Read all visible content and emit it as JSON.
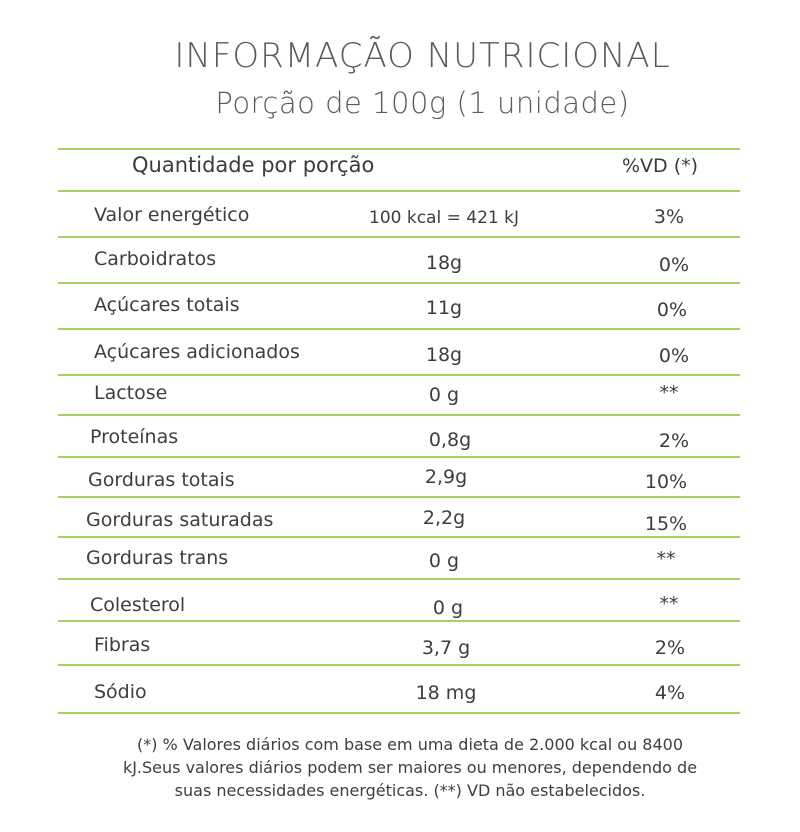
{
  "title": "INFORMAÇÃO NUTRICIONAL",
  "subtitle": "Porção de 100g (1 unidade)",
  "header": {
    "label": "Quantidade por porção",
    "vd_label": "%VD (*)"
  },
  "rows": [
    {
      "name": "Valor energético",
      "value": "100 kcal = 421 kJ",
      "vd": "3%"
    },
    {
      "name": "Carboidratos",
      "value": "18g",
      "vd": "0%"
    },
    {
      "name": "Açúcares totais",
      "value": "11g",
      "vd": "0%"
    },
    {
      "name": "Açúcares adicionados",
      "value": "18g",
      "vd": "0%"
    },
    {
      "name": "Lactose",
      "value": "0 g",
      "vd": "**"
    },
    {
      "name": "Proteínas",
      "value": "0,8g",
      "vd": "2%"
    },
    {
      "name": "Gorduras totais",
      "value": "2,9g",
      "vd": "10%"
    },
    {
      "name": "Gorduras saturadas",
      "value": "2,2g",
      "vd": "15%"
    },
    {
      "name": "Gorduras trans",
      "value": "0 g",
      "vd": "**"
    },
    {
      "name": "Colesterol",
      "value": "0 g",
      "vd": "**"
    },
    {
      "name": "Fibras",
      "value": "3,7 g",
      "vd": "2%"
    },
    {
      "name": "Sódio",
      "value": "18 mg",
      "vd": "4%"
    }
  ],
  "footnote": "(*) % Valores diários com base em uma dieta de 2.000 kcal ou 8400 kJ.Seus valores diários podem ser maiores ou menores, dependendo de suas necessidades energéticas. (**) VD não estabelecidos.",
  "colors": {
    "rule": "#a9cf62",
    "text": "#3e3e3e"
  }
}
